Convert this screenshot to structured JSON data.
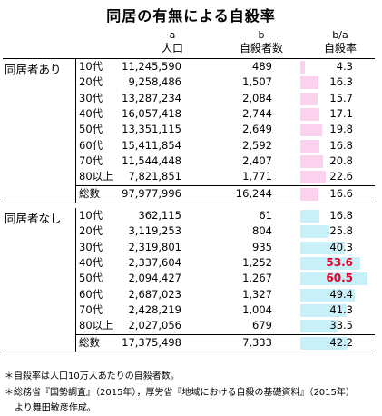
{
  "title": "同居の有無による自殺率",
  "headers": {
    "col_a_letter": "a",
    "col_a_label": "人口",
    "col_b_letter": "b",
    "col_b_label": "自殺者数",
    "col_c_letter": "b/a",
    "col_c_label": "自殺率"
  },
  "groups": [
    {
      "label": "同居者あり",
      "rows": [
        {
          "age": "10代",
          "pop": "11,245,590",
          "sui": "489",
          "rate": "4.3",
          "rate_value": 4.3
        },
        {
          "age": "20代",
          "pop": "9,258,486",
          "sui": "1,507",
          "rate": "16.3",
          "rate_value": 16.3
        },
        {
          "age": "30代",
          "pop": "13,287,234",
          "sui": "2,084",
          "rate": "15.7",
          "rate_value": 15.7
        },
        {
          "age": "40代",
          "pop": "16,057,418",
          "sui": "2,744",
          "rate": "17.1",
          "rate_value": 17.1
        },
        {
          "age": "50代",
          "pop": "13,351,115",
          "sui": "2,649",
          "rate": "19.8",
          "rate_value": 19.8
        },
        {
          "age": "60代",
          "pop": "15,411,854",
          "sui": "2,592",
          "rate": "16.8",
          "rate_value": 16.8
        },
        {
          "age": "70代",
          "pop": "11,544,448",
          "sui": "2,407",
          "rate": "20.8",
          "rate_value": 20.8
        },
        {
          "age": "80以上",
          "pop": "7,821,851",
          "sui": "1,771",
          "rate": "22.6",
          "rate_value": 22.6
        }
      ],
      "total": {
        "age": "総数",
        "pop": "97,977,996",
        "sui": "16,244",
        "rate": "16.6",
        "rate_value": 16.6
      }
    },
    {
      "label": "同居者なし",
      "rows": [
        {
          "age": "10代",
          "pop": "362,115",
          "sui": "61",
          "rate": "16.8",
          "rate_value": 16.8
        },
        {
          "age": "20代",
          "pop": "3,119,253",
          "sui": "804",
          "rate": "25.8",
          "rate_value": 25.8
        },
        {
          "age": "30代",
          "pop": "2,319,801",
          "sui": "935",
          "rate": "40.3",
          "rate_value": 40.3
        },
        {
          "age": "40代",
          "pop": "2,337,604",
          "sui": "1,252",
          "rate": "53.6",
          "rate_value": 53.6,
          "highlight": true
        },
        {
          "age": "50代",
          "pop": "2,094,427",
          "sui": "1,267",
          "rate": "60.5",
          "rate_value": 60.5,
          "highlight": true
        },
        {
          "age": "60代",
          "pop": "2,687,023",
          "sui": "1,327",
          "rate": "49.4",
          "rate_value": 49.4
        },
        {
          "age": "70代",
          "pop": "2,428,219",
          "sui": "1,004",
          "rate": "41.3",
          "rate_value": 41.3
        },
        {
          "age": "80以上",
          "pop": "2,027,056",
          "sui": "679",
          "rate": "33.5",
          "rate_value": 33.5
        }
      ],
      "total": {
        "age": "総数",
        "pop": "17,375,498",
        "sui": "7,333",
        "rate": "42.2",
        "rate_value": 42.2
      }
    }
  ],
  "notes": [
    "＊自殺率は人口10万人あたりの自殺者数。",
    "＊総務省『国勢調査』（2015年），厚労省『地域における自殺の基礎資料』（2015年）",
    "より舞田敏彦作成。"
  ],
  "colors": {
    "bar_with": "#fbd2ee",
    "bar_without": "#c8f0f8",
    "highlight": "#e0002a"
  }
}
